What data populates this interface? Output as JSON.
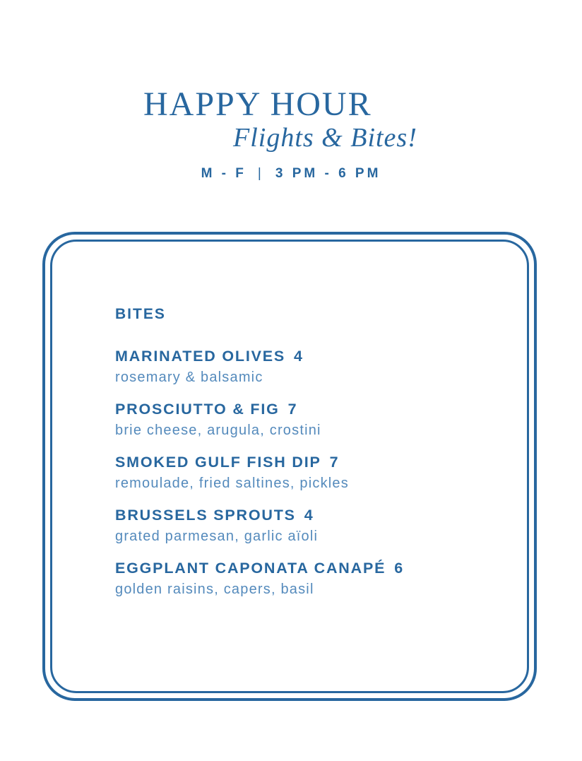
{
  "colors": {
    "accent_blue": "#28679f",
    "description_blue": "#548abc",
    "background": "#ffffff"
  },
  "header": {
    "title": "HAPPY HOUR",
    "subtitle": "Flights & Bites!",
    "hours": {
      "days": "M - F",
      "separator": "|",
      "time": "3 PM - 6 PM"
    }
  },
  "menu": {
    "section_heading": "BITES",
    "items": [
      {
        "name": "MARINATED OLIVES",
        "price": "4",
        "description": "rosemary & balsamic"
      },
      {
        "name": "PROSCIUTTO & FIG",
        "price": "7",
        "description": "brie cheese, arugula, crostini"
      },
      {
        "name": "SMOKED GULF FISH DIP",
        "price": "7",
        "description": "remoulade, fried saltines, pickles"
      },
      {
        "name": "BRUSSELS SPROUTS",
        "price": "4",
        "description": "grated parmesan, garlic aïoli"
      },
      {
        "name": "EGGPLANT CAPONATA CANAPÉ",
        "price": "6",
        "description": "golden raisins, capers, basil"
      }
    ]
  }
}
